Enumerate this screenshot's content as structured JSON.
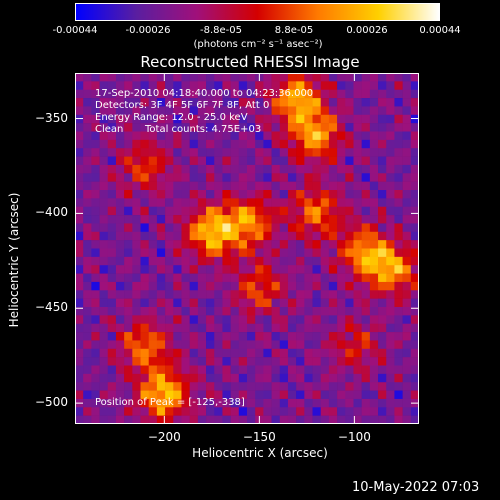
{
  "colorbar": {
    "ticks": [
      "-0.00044",
      "-0.00026",
      "-8.8e-05",
      "8.8e-05",
      "0.00026",
      "0.00044"
    ],
    "units": "(photons cm⁻² s⁻¹ asec⁻²)",
    "range": [
      -0.00044,
      0.00044
    ],
    "colormap": [
      "#0000ff",
      "#5a1ea0",
      "#a0107a",
      "#d40000",
      "#ff7a00",
      "#ffd000",
      "#ffffff"
    ]
  },
  "chart_data": {
    "type": "heatmap",
    "title": "Reconstructed RHESSI Image",
    "xlabel": "Heliocentric X (arcsec)",
    "ylabel": "Heliocentric Y (arcsec)",
    "xlim": [
      -247,
      -66
    ],
    "ylim": [
      -511,
      -326
    ],
    "xticks": [
      -200,
      -150,
      -100
    ],
    "yticks": [
      -350,
      -400,
      -450,
      -500
    ],
    "xtick_labels": [
      "−200",
      "−150",
      "−100"
    ],
    "ytick_labels": [
      "−350",
      "−400",
      "−450",
      "−500"
    ],
    "peak": [
      -125,
      -338
    ],
    "bright_sources": [
      {
        "x": -130,
        "y": -340,
        "intensity": 0.95
      },
      {
        "x": -120,
        "y": -360,
        "intensity": 0.85
      },
      {
        "x": -175,
        "y": -410,
        "intensity": 1.0
      },
      {
        "x": -155,
        "y": -405,
        "intensity": 0.8
      },
      {
        "x": -120,
        "y": -400,
        "intensity": 0.75
      },
      {
        "x": -95,
        "y": -420,
        "intensity": 0.8
      },
      {
        "x": -80,
        "y": -430,
        "intensity": 0.85
      },
      {
        "x": -200,
        "y": -495,
        "intensity": 1.0
      },
      {
        "x": -210,
        "y": -470,
        "intensity": 0.7
      },
      {
        "x": -150,
        "y": -440,
        "intensity": 0.6
      },
      {
        "x": -210,
        "y": -375,
        "intensity": 0.55
      },
      {
        "x": -100,
        "y": -470,
        "intensity": 0.45
      }
    ]
  },
  "annotations": {
    "line1": "17-Sep-2010 04:18:40.000 to 04:23:36.000",
    "line2": "Detectors: 3F 4F 5F 6F 7F 8F, Att 0",
    "line3": "Energy Range: 12.0 - 25.0 keV",
    "line4_method": "Clean",
    "line4_counts": "Total counts: 4.75E+03",
    "peak_text": "Position of Peak = [-125,-338]"
  },
  "footer": "10-May-2022 07:03"
}
